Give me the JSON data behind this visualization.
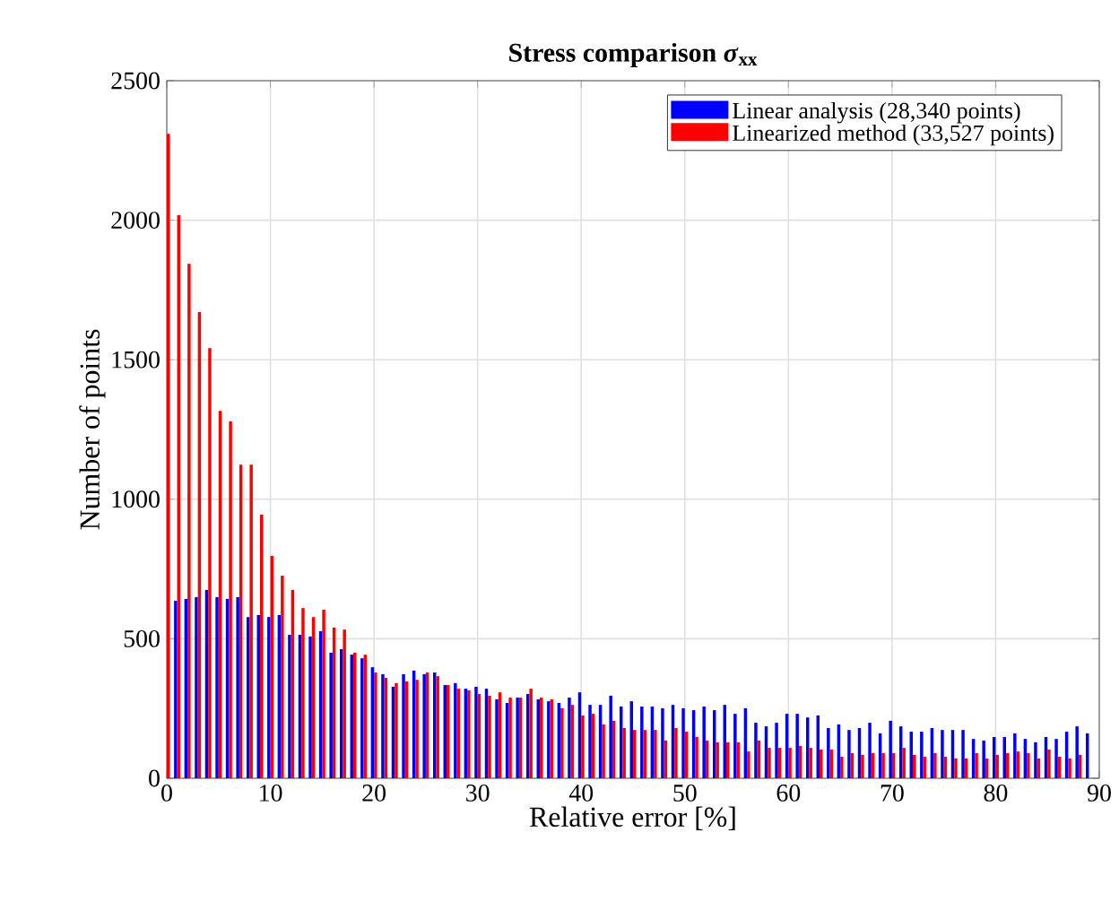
{
  "chart_data": {
    "type": "bar",
    "title": "Stress comparison  *σ*$_{xx}$",
    "xlabel": "Relative error [%]",
    "ylabel": "Number of points",
    "x": [
      0,
      1,
      2,
      3,
      4,
      5,
      6,
      7,
      8,
      9,
      10,
      11,
      12,
      13,
      14,
      15,
      16,
      17,
      18,
      19,
      20,
      21,
      22,
      23,
      24,
      25,
      26,
      27,
      28,
      29,
      30,
      31,
      32,
      33,
      34,
      35,
      36,
      37,
      38,
      39,
      40,
      41,
      42,
      43,
      44,
      45,
      46,
      47,
      48,
      49,
      50,
      51,
      52,
      53,
      54,
      55,
      56,
      57,
      58,
      59,
      60,
      61,
      62,
      63,
      64,
      65,
      66,
      67,
      68,
      69,
      70,
      71,
      72,
      73,
      74,
      75,
      76,
      77,
      78,
      79,
      80,
      81,
      82,
      83,
      84,
      85,
      86,
      87,
      88,
      89
    ],
    "series": [
      {
        "name": "Linear analysis (28,340 points)",
        "color": "#0000ff",
        "values": [
          null,
          636,
          643,
          649,
          675,
          649,
          643,
          649,
          578,
          585,
          578,
          585,
          514,
          514,
          508,
          527,
          450,
          463,
          443,
          430,
          398,
          373,
          328,
          373,
          386,
          373,
          379,
          334,
          341,
          321,
          328,
          321,
          283,
          270,
          289,
          302,
          283,
          276,
          270,
          289,
          308,
          263,
          263,
          296,
          257,
          276,
          257,
          257,
          251,
          263,
          251,
          244,
          257,
          244,
          263,
          231,
          251,
          199,
          186,
          199,
          231,
          231,
          218,
          225,
          180,
          193,
          173,
          180,
          199,
          161,
          206,
          186,
          167,
          167,
          180,
          173,
          173,
          173,
          141,
          135,
          148,
          148,
          161,
          141,
          129,
          148,
          141,
          167,
          186,
          161
        ]
      },
      {
        "name": "Linearized method (33,527 points)",
        "color": "#ff0000",
        "values": [
          2310,
          2018,
          1844,
          1671,
          1542,
          1317,
          1279,
          1124,
          1124,
          945,
          797,
          726,
          675,
          610,
          578,
          604,
          540,
          533,
          450,
          443,
          379,
          360,
          341,
          347,
          353,
          379,
          366,
          334,
          321,
          315,
          302,
          296,
          308,
          289,
          289,
          321,
          289,
          283,
          251,
          263,
          225,
          231,
          193,
          206,
          180,
          173,
          173,
          173,
          135,
          180,
          167,
          148,
          135,
          129,
          129,
          129,
          96,
          135,
          109,
          109,
          109,
          116,
          109,
          103,
          103,
          77,
          90,
          84,
          90,
          90,
          90,
          109,
          84,
          77,
          90,
          77,
          71,
          71,
          90,
          71,
          84,
          90,
          96,
          90,
          71,
          103,
          77,
          71,
          84,
          null
        ]
      }
    ],
    "xlim": [
      0,
      90
    ],
    "ylim": [
      0,
      2500
    ],
    "xticks": [
      0,
      10,
      20,
      30,
      40,
      50,
      60,
      70,
      80,
      90
    ],
    "yticks": [
      0,
      500,
      1000,
      1500,
      2000,
      2500
    ],
    "grid": true,
    "legend": "top right"
  }
}
